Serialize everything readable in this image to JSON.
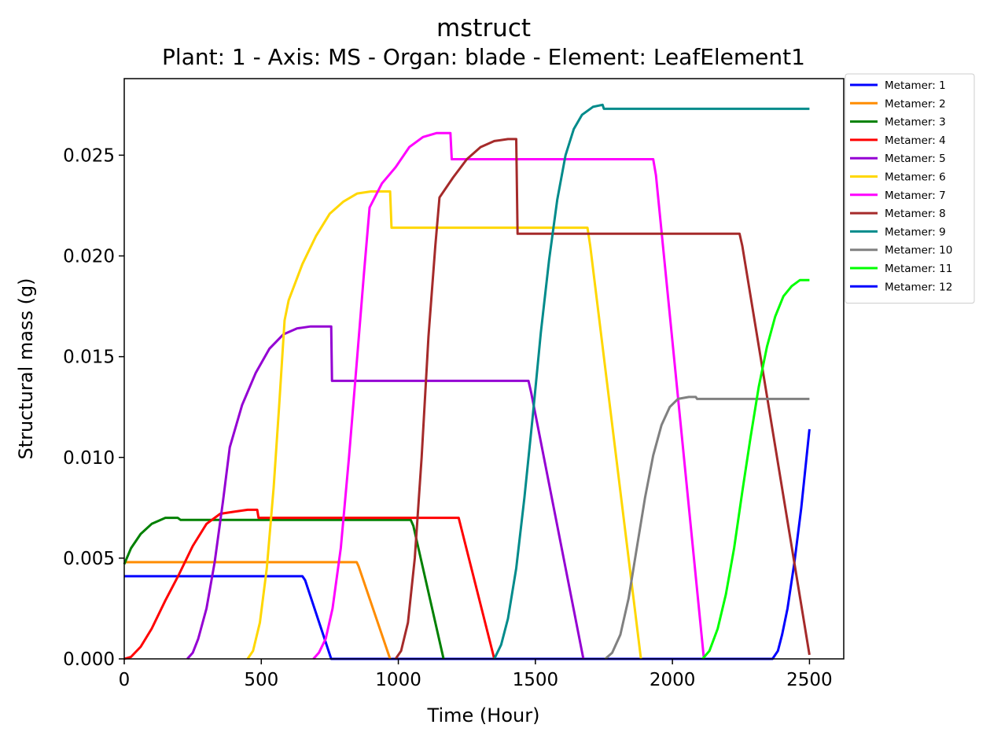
{
  "chart_data": {
    "type": "line",
    "title": "mstruct",
    "subtitle": "Plant: 1 - Axis: MS - Organ: blade - Element: LeafElement1",
    "xlabel": "Time (Hour)",
    "ylabel": "Structural mass (g)",
    "xlim": [
      0,
      2625
    ],
    "ylim": [
      0,
      0.0288
    ],
    "xticks": [
      0,
      500,
      1000,
      1500,
      2000,
      2500
    ],
    "xtick_labels": [
      "0",
      "500",
      "1000",
      "1500",
      "2000",
      "2500"
    ],
    "yticks": [
      0,
      0.005,
      0.01,
      0.015,
      0.02,
      0.025
    ],
    "ytick_labels": [
      "0.000",
      "0.005",
      "0.010",
      "0.015",
      "0.020",
      "0.025"
    ],
    "grid": false,
    "legend_position": "outside-top-right",
    "series": [
      {
        "name": "Metamer: 1",
        "color": "#0000ff",
        "points": [
          [
            0,
            0.0041
          ],
          [
            650,
            0.0041
          ],
          [
            660,
            0.0039
          ],
          [
            755,
            0
          ],
          [
            2365,
            0
          ],
          [
            2385,
            0.0004
          ],
          [
            2400,
            0.0012
          ],
          [
            2420,
            0.0025
          ],
          [
            2445,
            0.0048
          ],
          [
            2470,
            0.0075
          ],
          [
            2500,
            0.0114
          ]
        ]
      },
      {
        "name": "Metamer: 2",
        "color": "#ff8c00",
        "points": [
          [
            0,
            0.0048
          ],
          [
            848,
            0.0048
          ],
          [
            855,
            0.0046
          ],
          [
            970,
            0
          ]
        ]
      },
      {
        "name": "Metamer: 3",
        "color": "#008000",
        "points": [
          [
            0,
            0.0047
          ],
          [
            25,
            0.0055
          ],
          [
            60,
            0.0062
          ],
          [
            100,
            0.0067
          ],
          [
            150,
            0.007
          ],
          [
            195,
            0.007
          ],
          [
            205,
            0.0069
          ],
          [
            1045,
            0.0069
          ],
          [
            1055,
            0.0066
          ],
          [
            1165,
            0
          ]
        ]
      },
      {
        "name": "Metamer: 4",
        "color": "#ff0000",
        "points": [
          [
            0,
            0
          ],
          [
            25,
            0.0001
          ],
          [
            60,
            0.0006
          ],
          [
            100,
            0.0015
          ],
          [
            150,
            0.0029
          ],
          [
            200,
            0.0042
          ],
          [
            250,
            0.0056
          ],
          [
            300,
            0.0067
          ],
          [
            350,
            0.0072
          ],
          [
            400,
            0.0073
          ],
          [
            450,
            0.0074
          ],
          [
            485,
            0.0074
          ],
          [
            490,
            0.007
          ],
          [
            1220,
            0.007
          ],
          [
            1350,
            0
          ]
        ]
      },
      {
        "name": "Metamer: 5",
        "color": "#9400d3",
        "points": [
          [
            230,
            0
          ],
          [
            250,
            0.0003
          ],
          [
            270,
            0.001
          ],
          [
            300,
            0.0025
          ],
          [
            330,
            0.0048
          ],
          [
            360,
            0.0078
          ],
          [
            385,
            0.0105
          ],
          [
            430,
            0.0126
          ],
          [
            480,
            0.0142
          ],
          [
            530,
            0.0154
          ],
          [
            580,
            0.0161
          ],
          [
            630,
            0.0164
          ],
          [
            680,
            0.0165
          ],
          [
            755,
            0.0165
          ],
          [
            758,
            0.0138
          ],
          [
            1475,
            0.0138
          ],
          [
            1485,
            0.0132
          ],
          [
            1675,
            0
          ]
        ]
      },
      {
        "name": "Metamer: 6",
        "color": "#ffd700",
        "points": [
          [
            450,
            0
          ],
          [
            470,
            0.0004
          ],
          [
            495,
            0.0018
          ],
          [
            520,
            0.0045
          ],
          [
            545,
            0.0085
          ],
          [
            565,
            0.0125
          ],
          [
            585,
            0.0168
          ],
          [
            600,
            0.0178
          ],
          [
            650,
            0.0196
          ],
          [
            700,
            0.021
          ],
          [
            750,
            0.0221
          ],
          [
            800,
            0.0227
          ],
          [
            850,
            0.0231
          ],
          [
            900,
            0.0232
          ],
          [
            970,
            0.0232
          ],
          [
            975,
            0.0214
          ],
          [
            1690,
            0.0214
          ],
          [
            1700,
            0.0205
          ],
          [
            1885,
            0
          ]
        ]
      },
      {
        "name": "Metamer: 7",
        "color": "#ff00ff",
        "points": [
          [
            690,
            0
          ],
          [
            710,
            0.0003
          ],
          [
            735,
            0.001
          ],
          [
            760,
            0.0025
          ],
          [
            790,
            0.0055
          ],
          [
            820,
            0.01
          ],
          [
            850,
            0.015
          ],
          [
            875,
            0.0192
          ],
          [
            895,
            0.0224
          ],
          [
            940,
            0.0236
          ],
          [
            990,
            0.0244
          ],
          [
            1040,
            0.0254
          ],
          [
            1090,
            0.0259
          ],
          [
            1140,
            0.0261
          ],
          [
            1190,
            0.0261
          ],
          [
            1195,
            0.0248
          ],
          [
            1930,
            0.0248
          ],
          [
            1940,
            0.024
          ],
          [
            2115,
            0
          ]
        ]
      },
      {
        "name": "Metamer: 8",
        "color": "#a52a2a",
        "points": [
          [
            990,
            0
          ],
          [
            1010,
            0.0004
          ],
          [
            1035,
            0.0018
          ],
          [
            1060,
            0.005
          ],
          [
            1085,
            0.01
          ],
          [
            1110,
            0.016
          ],
          [
            1135,
            0.0205
          ],
          [
            1150,
            0.0229
          ],
          [
            1200,
            0.0239
          ],
          [
            1250,
            0.0248
          ],
          [
            1300,
            0.0254
          ],
          [
            1350,
            0.0257
          ],
          [
            1400,
            0.0258
          ],
          [
            1430,
            0.0258
          ],
          [
            1435,
            0.0211
          ],
          [
            2245,
            0.0211
          ],
          [
            2255,
            0.0205
          ],
          [
            2500,
            0.0002
          ]
        ]
      },
      {
        "name": "Metamer: 9",
        "color": "#008b8b",
        "points": [
          [
            1350,
            0
          ],
          [
            1375,
            0.0007
          ],
          [
            1400,
            0.002
          ],
          [
            1430,
            0.0045
          ],
          [
            1460,
            0.008
          ],
          [
            1490,
            0.012
          ],
          [
            1520,
            0.0162
          ],
          [
            1550,
            0.0198
          ],
          [
            1580,
            0.0228
          ],
          [
            1610,
            0.025
          ],
          [
            1640,
            0.0263
          ],
          [
            1670,
            0.027
          ],
          [
            1710,
            0.0274
          ],
          [
            1745,
            0.0275
          ],
          [
            1750,
            0.0273
          ],
          [
            2500,
            0.0273
          ]
        ]
      },
      {
        "name": "Metamer: 10",
        "color": "#808080",
        "points": [
          [
            1755,
            0
          ],
          [
            1780,
            0.0003
          ],
          [
            1810,
            0.0012
          ],
          [
            1840,
            0.003
          ],
          [
            1870,
            0.0055
          ],
          [
            1900,
            0.008
          ],
          [
            1930,
            0.0101
          ],
          [
            1960,
            0.0116
          ],
          [
            1990,
            0.0125
          ],
          [
            2020,
            0.0129
          ],
          [
            2060,
            0.013
          ],
          [
            2085,
            0.013
          ],
          [
            2090,
            0.0129
          ],
          [
            2500,
            0.0129
          ]
        ]
      },
      {
        "name": "Metamer: 11",
        "color": "#00ff00",
        "points": [
          [
            2110,
            0
          ],
          [
            2135,
            0.0004
          ],
          [
            2165,
            0.0015
          ],
          [
            2195,
            0.0032
          ],
          [
            2225,
            0.0055
          ],
          [
            2255,
            0.0083
          ],
          [
            2285,
            0.011
          ],
          [
            2315,
            0.0135
          ],
          [
            2345,
            0.0155
          ],
          [
            2375,
            0.017
          ],
          [
            2405,
            0.018
          ],
          [
            2435,
            0.0185
          ],
          [
            2465,
            0.0188
          ],
          [
            2500,
            0.0188
          ]
        ]
      },
      {
        "name": "Metamer: 12",
        "color": "#0000ff",
        "points": []
      }
    ]
  }
}
